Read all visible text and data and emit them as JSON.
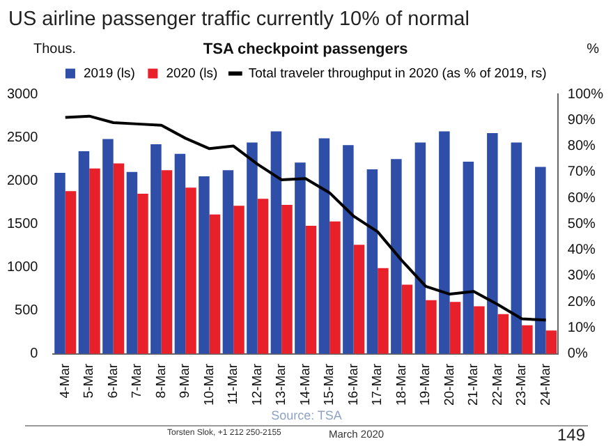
{
  "chart_data": {
    "type": "bar",
    "title": "US airline passenger traffic currently 10% of normal",
    "subtitle": "TSA checkpoint passengers",
    "ylabel": "Thous.",
    "y2label": "%",
    "categories": [
      "4-Mar",
      "5-Mar",
      "6-Mar",
      "7-Mar",
      "8-Mar",
      "9-Mar",
      "10-Mar",
      "11-Mar",
      "12-Mar",
      "13-Mar",
      "14-Mar",
      "15-Mar",
      "16-Mar",
      "17-Mar",
      "18-Mar",
      "19-Mar",
      "20-Mar",
      "21-Mar",
      "22-Mar",
      "23-Mar",
      "24-Mar"
    ],
    "series": [
      {
        "name": "2019 (ls)",
        "color": "#2f4ea8",
        "values": [
          2090,
          2340,
          2480,
          2100,
          2420,
          2310,
          2050,
          2120,
          2440,
          2570,
          2210,
          2490,
          2410,
          2130,
          2250,
          2440,
          2570,
          2220,
          2550,
          2440,
          2160
        ]
      },
      {
        "name": "2020 (ls)",
        "color": "#e8202a",
        "values": [
          1880,
          2140,
          2200,
          1850,
          2120,
          1920,
          1610,
          1710,
          1790,
          1720,
          1480,
          1530,
          1260,
          990,
          800,
          620,
          600,
          550,
          460,
          330,
          270
        ]
      },
      {
        "name": "Total traveler throughput in 2020 (as % of 2019, rs)",
        "type": "line",
        "axis": "y2",
        "color": "#000000",
        "values": [
          91,
          91.5,
          89,
          88.5,
          88,
          83,
          79,
          80,
          73,
          67,
          67.5,
          62,
          53,
          47,
          36,
          26,
          23,
          24,
          19,
          13.5,
          13
        ]
      }
    ],
    "ylim": [
      0,
      3000
    ],
    "yticks": [
      0,
      500,
      1000,
      1500,
      2000,
      2500,
      3000
    ],
    "y2lim": [
      0,
      100
    ],
    "y2ticks": [
      {
        "value": 0,
        "label": "0%"
      },
      {
        "value": 10,
        "label": "10%"
      },
      {
        "value": 20,
        "label": "20%"
      },
      {
        "value": 30,
        "label": "30%"
      },
      {
        "value": 40,
        "label": "40%"
      },
      {
        "value": 50,
        "label": "50%"
      },
      {
        "value": 60,
        "label": "60%"
      },
      {
        "value": 70,
        "label": "70%"
      },
      {
        "value": 80,
        "label": "80%"
      },
      {
        "value": 90,
        "label": "90%"
      },
      {
        "value": 100,
        "label": "100%"
      }
    ],
    "grid": false,
    "legend": "top",
    "marker": "none",
    "line_style": "solid",
    "annotations": [
      "Source: TSA",
      "Torsten Slok, +1 212 250-2155",
      "March 2020",
      "149"
    ]
  }
}
